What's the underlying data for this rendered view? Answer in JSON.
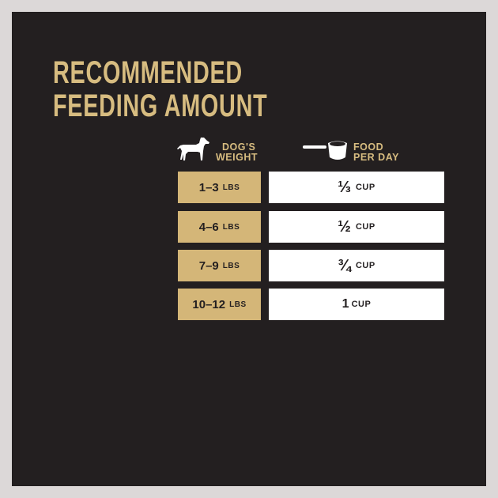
{
  "title": {
    "line1": "RECOMMENDED",
    "line2": "FEEDING AMOUNT"
  },
  "headers": {
    "weight": {
      "line1": "DOG'S",
      "line2": "WEIGHT",
      "icon": "dog-icon"
    },
    "food": {
      "line1": "FOOD",
      "line2": "PER DAY",
      "icon": "measuring-cup-icon"
    }
  },
  "rows": [
    {
      "weight": "1–3",
      "weight_unit": "LBS",
      "amount": "⅓",
      "amount_unit": "CUP"
    },
    {
      "weight": "4–6",
      "weight_unit": "LBS",
      "amount": "½",
      "amount_unit": "CUP"
    },
    {
      "weight": "7–9",
      "weight_unit": "LBS",
      "amount": "¾",
      "amount_unit": "CUP"
    },
    {
      "weight": "10–12",
      "weight_unit": "LBS",
      "amount": "1",
      "amount_unit": "CUP"
    }
  ],
  "colors": {
    "background": "#231f20",
    "gold": "#d4b678",
    "border": "#dcd8d8"
  }
}
